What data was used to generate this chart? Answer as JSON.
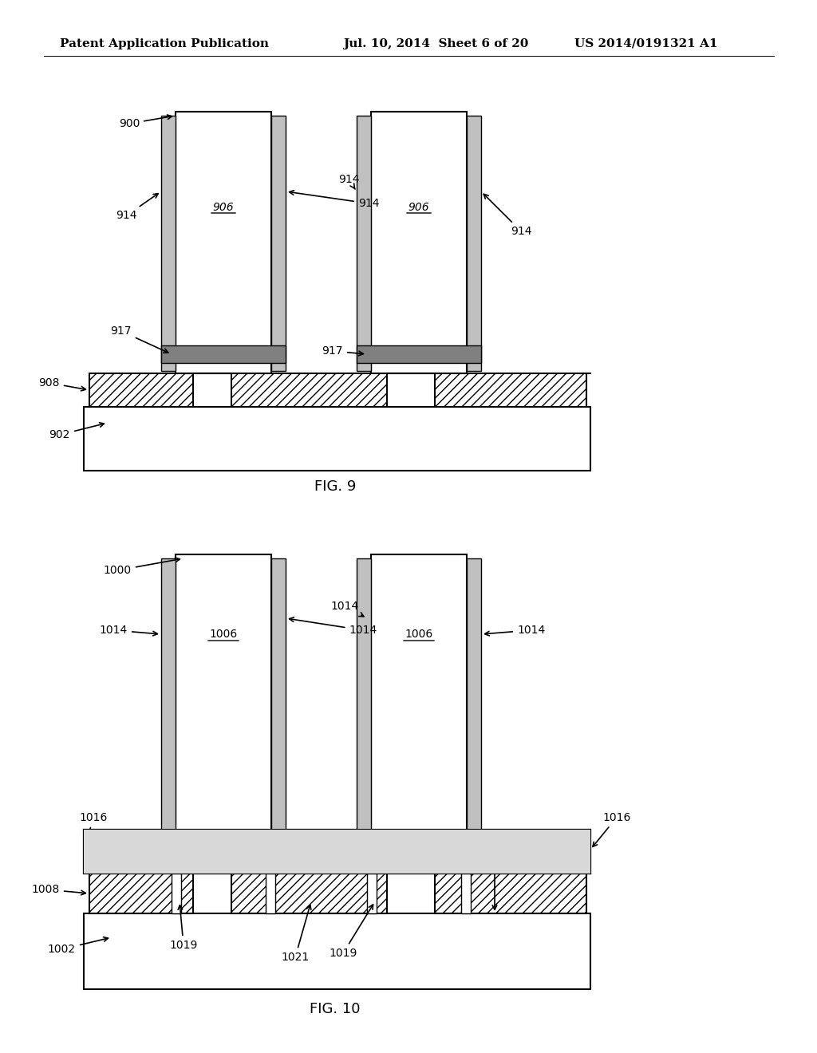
{
  "bg_color": "#ffffff",
  "header_left": "Patent Application Publication",
  "header_mid": "Jul. 10, 2014  Sheet 6 of 20",
  "header_right": "US 2014/0191321 A1",
  "fig9_label": "FIG. 9",
  "fig10_label": "FIG. 10",
  "hatch_pattern": "///",
  "hatch_color": "#000000",
  "line_color": "#000000",
  "fill_white": "#ffffff",
  "fill_light_gray": "#d8d8d8",
  "fill_dotted": "#c8c8c8"
}
